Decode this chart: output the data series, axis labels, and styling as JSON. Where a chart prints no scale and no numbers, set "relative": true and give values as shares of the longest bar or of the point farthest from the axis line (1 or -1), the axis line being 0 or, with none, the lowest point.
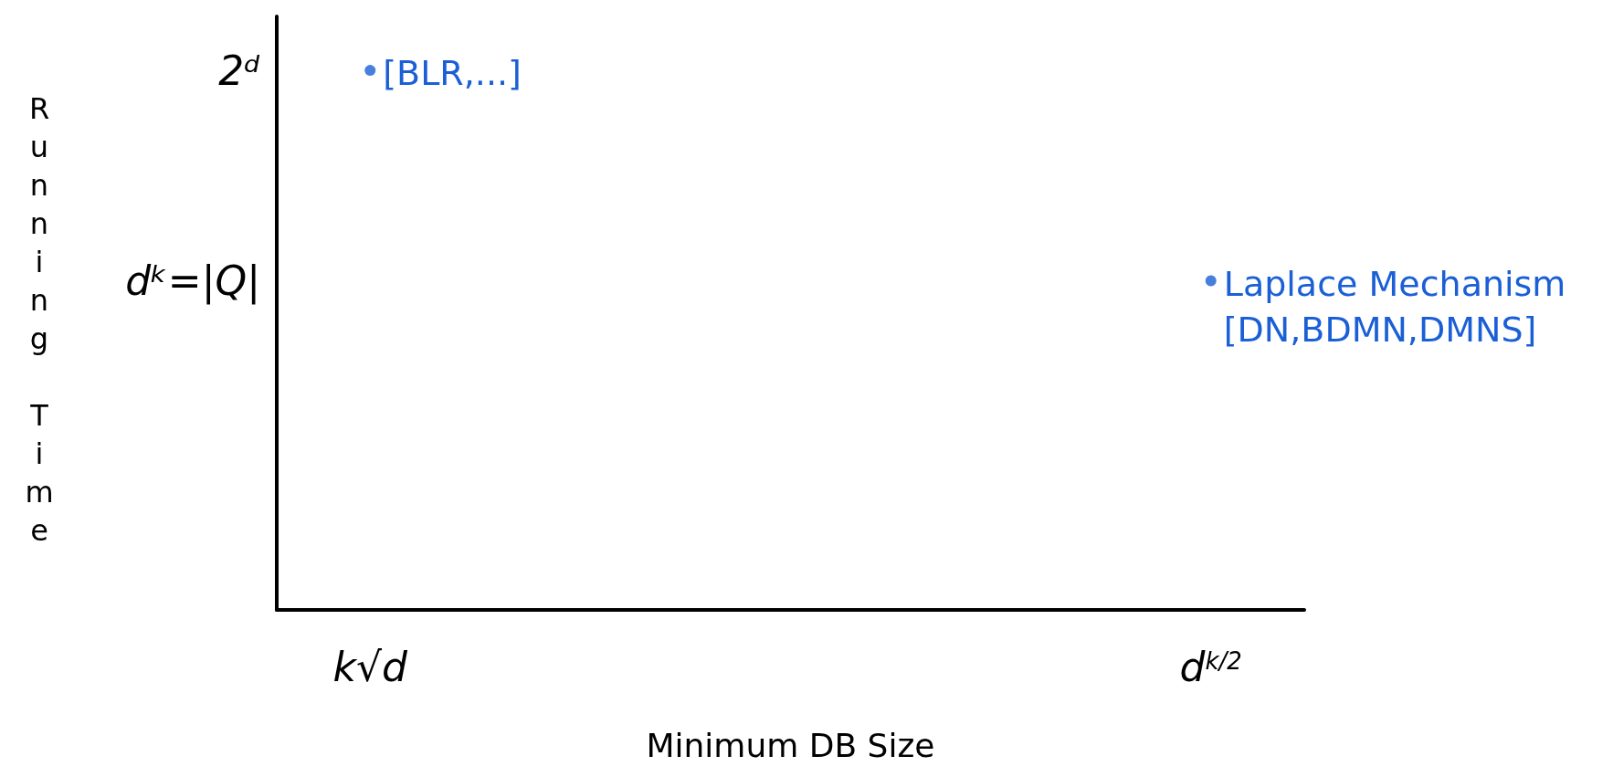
{
  "chart_data": {
    "type": "scatter",
    "xlabel": "Minimum DB Size",
    "ylabel": "Running Time",
    "relative": true,
    "categories": [
      null,
      "k√d",
      null,
      null,
      null,
      null,
      null,
      null,
      null,
      null,
      "d$^{k/2}$",
      null
    ],
    "series": [
      {
        "color": "#1a5fd6",
        "values": [
          null,
          1,
          null,
          null,
          null,
          null,
          null,
          null,
          null,
          null,
          0.61,
          null
        ]
      }
    ],
    "annotations": [
      "2ᵈ",
      "dᵏ=|Q|",
      {
        "text": "[BLR,...]",
        "x": "k√d",
        "y": 1
      },
      {
        "text": "Laplace Mechanism\n[DN,BDMN,DMNS]",
        "x": "d$^{k/2}$",
        "y": 0.61
      }
    ],
    "grid": false,
    "marker": "circle"
  }
}
